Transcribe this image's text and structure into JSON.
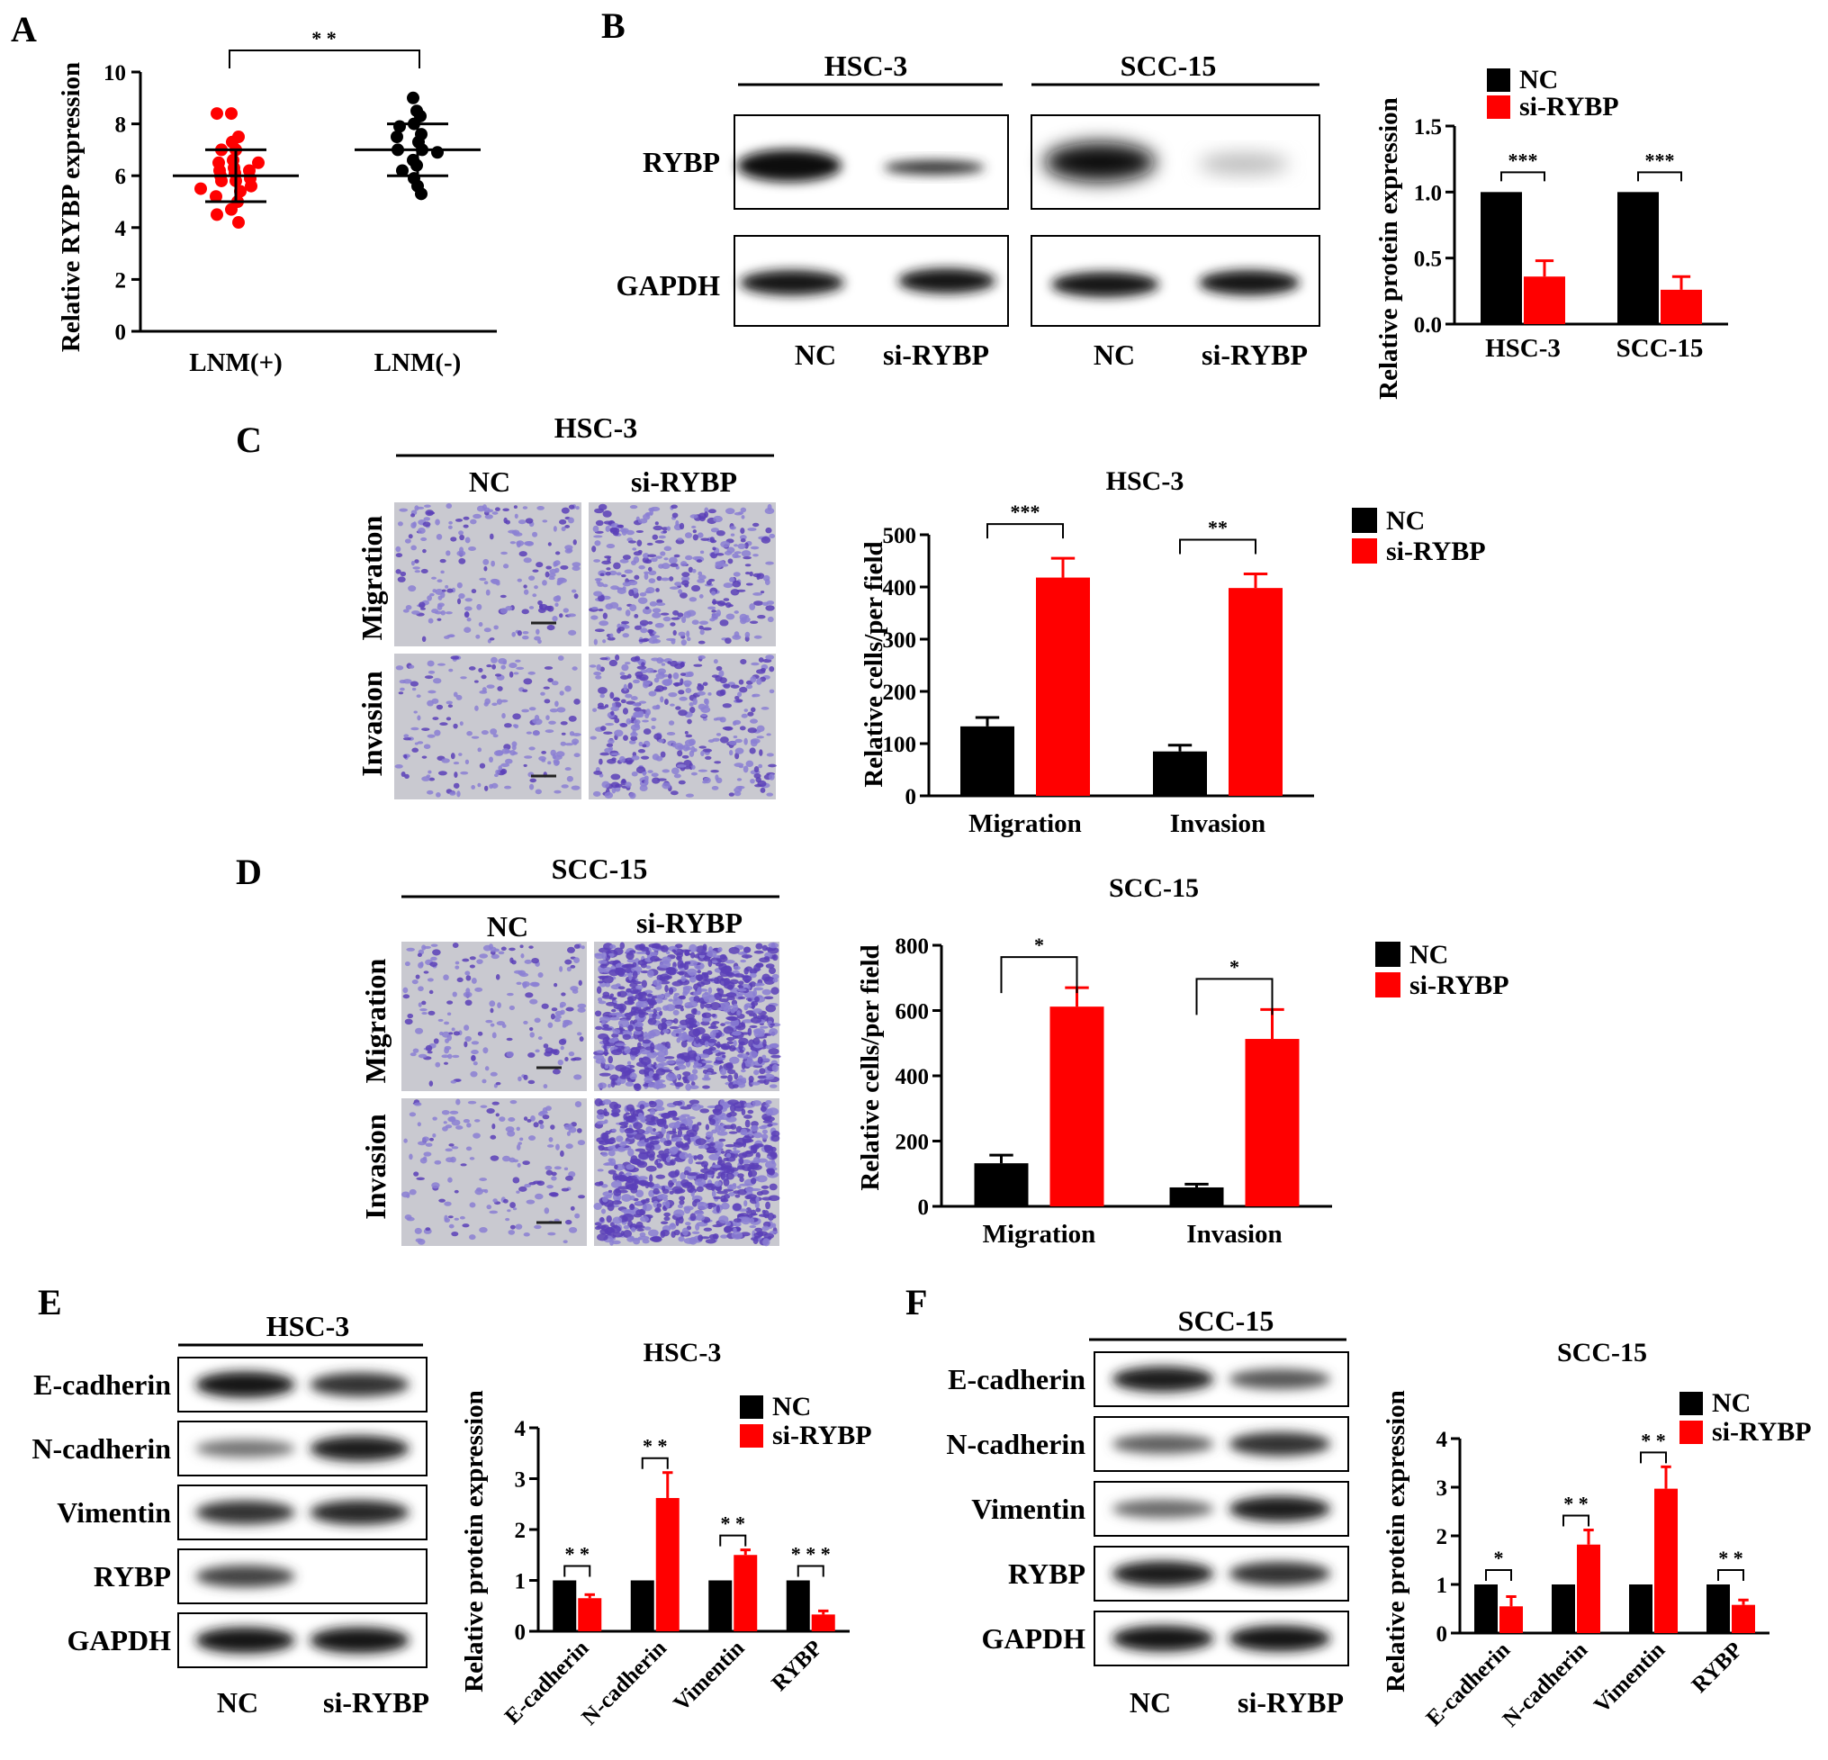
{
  "panel_labels": {
    "A": "A",
    "B": "B",
    "C": "C",
    "D": "D",
    "E": "E",
    "F": "F"
  },
  "colors": {
    "nc": "#000000",
    "si": "#ff0000",
    "membrane": "#c9c9d0",
    "cell_light": "#8b7fd4",
    "cell_dark": "#5b3fb8"
  },
  "panelA": {
    "chart_data": {
      "type": "scatter",
      "title": "",
      "ylabel": "Relative RYBP expression",
      "categories": [
        "LNM(+)",
        "LNM(-)"
      ],
      "ylim": [
        0,
        10
      ],
      "yticks": [
        "0",
        "2",
        "4",
        "6",
        "8",
        "10"
      ],
      "groups": [
        {
          "name": "LNM(+)",
          "color": "#ff0000",
          "mean": 6.0,
          "sd_low": 5.0,
          "sd_high": 7.0,
          "points": [
            8.4,
            8.4,
            7.5,
            7.3,
            7.0,
            7.0,
            6.6,
            6.5,
            6.5,
            6.3,
            6.2,
            6.2,
            6.1,
            6.0,
            5.9,
            5.8,
            5.8,
            5.6,
            5.5,
            5.4,
            5.2,
            5.0,
            4.7,
            4.5,
            4.2
          ]
        },
        {
          "name": "LNM(-)",
          "color": "#000000",
          "mean": 7.0,
          "sd_low": 6.0,
          "sd_high": 8.0,
          "points": [
            9.0,
            8.5,
            8.3,
            8.0,
            7.9,
            7.6,
            7.5,
            7.3,
            7.0,
            7.0,
            6.9,
            6.6,
            6.4,
            6.2,
            5.9,
            5.6,
            5.3
          ]
        }
      ],
      "significance": "* *"
    }
  },
  "panelB": {
    "blot": {
      "groups": [
        "HSC-3",
        "SCC-15"
      ],
      "rows": [
        "RYBP",
        "GAPDH"
      ],
      "lanes": [
        "NC",
        "si-RYBP",
        "NC",
        "si-RYBP"
      ]
    },
    "chart_data": {
      "type": "bar",
      "ylabel": "Relative protein expression",
      "categories": [
        "HSC-3",
        "SCC-15"
      ],
      "ylim": [
        0,
        1.5
      ],
      "yticks": [
        "0.0",
        "0.5",
        "1.0",
        "1.5"
      ],
      "series": [
        {
          "name": "NC",
          "color": "#000000",
          "values": [
            1.0,
            1.0
          ],
          "errors": [
            0,
            0
          ]
        },
        {
          "name": "si-RYBP",
          "color": "#ff0000",
          "values": [
            0.36,
            0.26
          ],
          "errors": [
            0.12,
            0.1
          ]
        }
      ],
      "significance": [
        "***",
        "***"
      ]
    }
  },
  "panelC": {
    "images": {
      "header": "HSC-3",
      "cols": [
        "NC",
        "si-RYBP"
      ],
      "rows": [
        "Migration",
        "Invasion"
      ]
    },
    "chart_data": {
      "type": "bar",
      "title": "HSC-3",
      "ylabel": "Relative cells/per field",
      "categories": [
        "Migration",
        "Invasion"
      ],
      "ylim": [
        0,
        500
      ],
      "yticks": [
        "0",
        "100",
        "200",
        "300",
        "400",
        "500"
      ],
      "series": [
        {
          "name": "NC",
          "color": "#000000",
          "values": [
            133,
            85
          ],
          "errors": [
            17,
            12
          ]
        },
        {
          "name": "si-RYBP",
          "color": "#ff0000",
          "values": [
            418,
            398
          ],
          "errors": [
            37,
            27
          ]
        }
      ],
      "significance": [
        "***",
        "**"
      ]
    }
  },
  "panelD": {
    "images": {
      "header": "SCC-15",
      "cols": [
        "NC",
        "si-RYBP"
      ],
      "rows": [
        "Migration",
        "Invasion"
      ]
    },
    "chart_data": {
      "type": "bar",
      "title": "SCC-15",
      "ylabel": "Relative cells/per field",
      "categories": [
        "Migration",
        "Invasion"
      ],
      "ylim": [
        0,
        800
      ],
      "yticks": [
        "0",
        "200",
        "400",
        "600",
        "800"
      ],
      "series": [
        {
          "name": "NC",
          "color": "#000000",
          "values": [
            132,
            58
          ],
          "errors": [
            25,
            10
          ]
        },
        {
          "name": "si-RYBP",
          "color": "#ff0000",
          "values": [
            612,
            513
          ],
          "errors": [
            58,
            90
          ]
        }
      ],
      "significance": [
        "*",
        "*"
      ]
    }
  },
  "panelE": {
    "blot": {
      "header": "HSC-3",
      "rows": [
        "E-cadherin",
        "N-cadherin",
        "Vimentin",
        "RYBP",
        "GAPDH"
      ],
      "lanes": [
        "NC",
        "si-RYBP"
      ]
    },
    "chart_data": {
      "type": "bar",
      "title": "HSC-3",
      "ylabel": "Relative protein expression",
      "categories": [
        "E-cadherin",
        "N-cadherin",
        "Vimentin",
        "RYBP"
      ],
      "ylim": [
        0,
        4
      ],
      "yticks": [
        "0",
        "1",
        "2",
        "3",
        "4"
      ],
      "series": [
        {
          "name": "NC",
          "color": "#000000",
          "values": [
            1,
            1,
            1,
            1
          ],
          "errors": [
            0,
            0,
            0,
            0
          ]
        },
        {
          "name": "si-RYBP",
          "color": "#ff0000",
          "values": [
            0.65,
            2.62,
            1.5,
            0.33
          ],
          "errors": [
            0.07,
            0.5,
            0.1,
            0.07
          ]
        }
      ],
      "significance": [
        "* *",
        "* *",
        "* *",
        "* * *"
      ]
    }
  },
  "panelF": {
    "blot": {
      "header": "SCC-15",
      "rows": [
        "E-cadherin",
        "N-cadherin",
        "Vimentin",
        "RYBP",
        "GAPDH"
      ],
      "lanes": [
        "NC",
        "si-RYBP"
      ]
    },
    "chart_data": {
      "type": "bar",
      "title": "SCC-15",
      "ylabel": "Relative protein expression",
      "categories": [
        "E-cadherin",
        "N-cadherin",
        "Vimentin",
        "RYBP"
      ],
      "ylim": [
        0,
        4
      ],
      "yticks": [
        "0",
        "1",
        "2",
        "3",
        "4"
      ],
      "series": [
        {
          "name": "NC",
          "color": "#000000",
          "values": [
            1,
            1,
            1,
            1
          ],
          "errors": [
            0,
            0,
            0,
            0
          ]
        },
        {
          "name": "si-RYBP",
          "color": "#ff0000",
          "values": [
            0.55,
            1.82,
            2.97,
            0.58
          ],
          "errors": [
            0.2,
            0.3,
            0.45,
            0.1
          ]
        }
      ],
      "significance": [
        "*",
        "* *",
        "* *",
        "* *"
      ]
    }
  }
}
